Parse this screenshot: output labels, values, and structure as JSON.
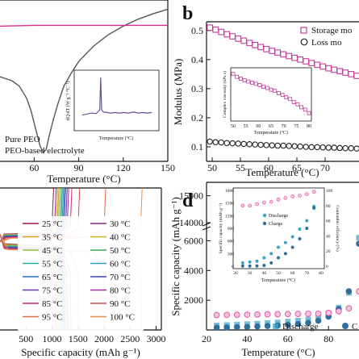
{
  "chart_data": [
    {
      "panel": "a",
      "type": "line",
      "xlabel": "Temperature (°C)",
      "xticks": [
        60,
        90,
        120,
        150
      ],
      "xlim": [
        37,
        150
      ],
      "legend": [
        "Pure PEO",
        "PEO-based electrolyte"
      ],
      "series": [
        {
          "name": "Pure PEO",
          "color": "#555555",
          "x": [
            37,
            45,
            50,
            55,
            58,
            61,
            64,
            66,
            68,
            70,
            73,
            76,
            80,
            85,
            90,
            100,
            110,
            120,
            130,
            140,
            150
          ],
          "y": [
            0.0,
            -0.05,
            -0.12,
            -0.28,
            -0.45,
            -0.68,
            -0.9,
            -0.98,
            -0.95,
            -0.78,
            -0.55,
            -0.35,
            -0.12,
            0.05,
            0.2,
            0.4,
            0.55,
            0.66,
            0.75,
            0.82,
            0.88
          ]
        },
        {
          "name": "PEO-based electrolyte",
          "color": "#d62d8c",
          "x": [
            37,
            60,
            90,
            120,
            150
          ],
          "y": [
            0.66,
            0.67,
            0.67,
            0.67,
            0.67
          ]
        }
      ],
      "ylim": [
        -1.1,
        1.0
      ],
      "inset": {
        "ylabel": "dQ/dT (W g⁻¹ °C⁻¹)",
        "xlabel": "Temperature (°C)",
        "color": "#6a4aa0",
        "x": [
          25,
          30,
          35,
          40,
          44,
          45,
          46,
          48,
          52,
          56,
          60,
          65,
          70,
          75,
          80,
          85,
          90,
          95,
          100
        ],
        "y": [
          0.2,
          0.22,
          0.24,
          0.23,
          0.3,
          0.95,
          0.3,
          0.26,
          0.25,
          0.24,
          0.25,
          0.24,
          0.25,
          0.24,
          0.26,
          0.24,
          0.25,
          0.24,
          0.25
        ]
      }
    },
    {
      "panel": "b",
      "label": "b",
      "type": "scatter",
      "ylabel": "Modulus (MPa)",
      "xlabel": "Temperature (°C)",
      "xticks": [
        50,
        55,
        60,
        65,
        70
      ],
      "yticks": [
        0.1,
        0.2,
        0.3,
        0.4,
        0.5
      ],
      "xlim": [
        49,
        76
      ],
      "ylim": [
        0.05,
        0.53
      ],
      "series": [
        {
          "name": "Storage mo",
          "color": "#c43b9c",
          "marker": "square",
          "x": [
            49.6,
            50.6,
            51.6,
            52.6,
            53.6,
            54.6,
            55.6,
            56.6,
            57.6,
            58.6,
            59.6,
            60.6,
            61.6,
            62.6,
            63.6,
            64.6,
            65.6,
            66.6,
            67.6,
            68.6,
            69.6,
            70.6,
            71.6,
            72.6,
            73.6,
            74.6,
            75.6
          ],
          "y": [
            0.51,
            0.503,
            0.495,
            0.487,
            0.48,
            0.472,
            0.465,
            0.457,
            0.45,
            0.443,
            0.436,
            0.43,
            0.424,
            0.418,
            0.412,
            0.406,
            0.4,
            0.394,
            0.388,
            0.382,
            0.376,
            0.37,
            0.365,
            0.36,
            0.355,
            0.35,
            0.344
          ]
        },
        {
          "name": "Loss mo",
          "color": "#222222",
          "marker": "circle",
          "x": [
            49.6,
            50.6,
            51.6,
            52.6,
            53.6,
            54.6,
            55.6,
            56.6,
            57.6,
            58.6,
            59.6,
            60.6,
            61.6,
            62.6,
            63.6,
            64.6,
            65.6,
            66.6,
            67.6,
            68.6,
            69.6,
            70.6,
            71.6,
            72.6,
            73.6,
            74.6,
            75.6
          ],
          "y": [
            0.118,
            0.116,
            0.115,
            0.113,
            0.112,
            0.111,
            0.11,
            0.109,
            0.108,
            0.107,
            0.106,
            0.105,
            0.104,
            0.104,
            0.103,
            0.102,
            0.101,
            0.1,
            0.099,
            0.099,
            0.098,
            0.097,
            0.097,
            0.096,
            0.095,
            0.095,
            0.094
          ]
        }
      ],
      "inset": {
        "ylabel": "Complex viscosity (kPa s)",
        "xlabel": "Temperature (°C)",
        "xticks": [
          50,
          55,
          60,
          65,
          70,
          75,
          80
        ],
        "xlim": [
          50,
          80
        ],
        "color": "#c43b9c",
        "x": [
          50,
          51.5,
          53,
          54.5,
          56,
          57.5,
          59,
          60.5,
          62,
          63.5,
          65,
          66.5,
          68,
          69.5,
          71,
          72.5,
          74,
          75.5,
          77,
          78.5,
          80
        ],
        "y": [
          0.95,
          0.9,
          0.87,
          0.84,
          0.82,
          0.8,
          0.78,
          0.76,
          0.73,
          0.71,
          0.68,
          0.66,
          0.62,
          0.59,
          0.55,
          0.52,
          0.47,
          0.43,
          0.38,
          0.34,
          0.28
        ]
      }
    },
    {
      "panel": "c",
      "type": "line",
      "xlabel": "Specific capacity (mAh g⁻¹)",
      "xticks": [
        500,
        1000,
        1500,
        2000,
        2500,
        3000
      ],
      "xlim": [
        0,
        3100
      ],
      "legend": [
        {
          "name": "25 °C",
          "color": "#9a1b4a"
        },
        {
          "name": "30 °C",
          "color": "#8a2b7a"
        },
        {
          "name": "35 °C",
          "color": "#d4a92a"
        },
        {
          "name": "40 °C",
          "color": "#c9b52f"
        },
        {
          "name": "45 °C",
          "color": "#8dbb3d"
        },
        {
          "name": "50 °C",
          "color": "#3aa655"
        },
        {
          "name": "55 °C",
          "color": "#2fae9a"
        },
        {
          "name": "60 °C",
          "color": "#2c9fc4"
        },
        {
          "name": "65 °C",
          "color": "#2b6fc1"
        },
        {
          "name": "70 °C",
          "color": "#3b45b3"
        },
        {
          "name": "75 °C",
          "color": "#6a35a8"
        },
        {
          "name": "80 °C",
          "color": "#9a2c96"
        },
        {
          "name": "85 °C",
          "color": "#c72c7a"
        },
        {
          "name": "90 °C",
          "color": "#d64a5a"
        },
        {
          "name": "95 °C",
          "color": "#e06a4a"
        },
        {
          "name": "100 °C",
          "color": "#e8904a"
        }
      ],
      "curve_end_capacities": [
        1000,
        1050,
        1080,
        1100,
        1120,
        1150,
        1170,
        1190,
        1210,
        1230,
        1260,
        1290,
        1350,
        1500,
        2000,
        2700
      ]
    },
    {
      "panel": "d",
      "label": "d",
      "type": "scatter",
      "ylabel": "Specific capacity (mAh g⁻¹)",
      "y2label": "Coulombic efficiency (%)",
      "xlabel": "Temperature (°C)",
      "xticks": [
        20,
        40,
        60,
        80
      ],
      "yticks": [
        2000,
        4000,
        6000,
        14000,
        15000
      ],
      "xlim": [
        20,
        95
      ],
      "series": [
        {
          "name": "Discharge",
          "color": "#3aa3c8",
          "marker": "square",
          "x": [
            25,
            30,
            35,
            40,
            45,
            50,
            55,
            60,
            65,
            70,
            75,
            80,
            85,
            90,
            95
          ],
          "y": [
            300,
            330,
            360,
            390,
            420,
            460,
            500,
            560,
            620,
            700,
            820,
            1100,
            1500,
            2500,
            6200
          ]
        },
        {
          "name": "Charge",
          "color": "#2f6f9a",
          "marker": "circle",
          "x": [
            25,
            30,
            35,
            40,
            45,
            50,
            55,
            60,
            65,
            70,
            75,
            80,
            85,
            90,
            95
          ],
          "y": [
            150,
            170,
            190,
            210,
            240,
            270,
            300,
            340,
            400,
            480,
            620,
            900,
            1400,
            2600,
            5800
          ]
        },
        {
          "name": "Coulombic efficiency",
          "color": "#e05aa8",
          "marker": "circle-open",
          "x": [
            25,
            30,
            35,
            40,
            45,
            50,
            55,
            60,
            65,
            70,
            75,
            80,
            85,
            90,
            95
          ],
          "y": [
            1000,
            1010,
            1020,
            1030,
            1040,
            1050,
            1060,
            1070,
            1080,
            1090,
            1100,
            1150,
            1250,
            1450,
            2600
          ]
        }
      ],
      "legend": [
        "Discharge",
        "C"
      ],
      "inset": {
        "ylabel": "Specific capacity (mAh g⁻¹)",
        "y2label": "Coulombic efficiency (%)",
        "xlabel": "Temperature (°C)",
        "xticks": [
          20,
          30,
          40,
          50,
          60,
          70,
          80
        ],
        "yticks": [
          0,
          300,
          600,
          900,
          1200,
          1500,
          1800
        ],
        "y2ticks": [
          0,
          20,
          40,
          60,
          80,
          100
        ],
        "legend": [
          "Discharge",
          "Charge"
        ],
        "discharge": {
          "x": [
            25,
            30,
            35,
            40,
            45,
            50,
            55,
            60,
            65,
            70,
            75
          ],
          "y": [
            80,
            100,
            120,
            200,
            300,
            450,
            560,
            700,
            880,
            1080,
            1420
          ]
        },
        "charge": {
          "x": [
            25,
            30,
            35,
            40,
            45,
            50,
            55,
            60,
            65,
            70,
            75
          ],
          "y": [
            5,
            5,
            8,
            20,
            80,
            200,
            300,
            450,
            650,
            900,
            1380
          ]
        },
        "efficiency": {
          "x": [
            25,
            30,
            35,
            40,
            45,
            50,
            55,
            60,
            65,
            70,
            75
          ],
          "y": [
            80,
            80,
            82,
            84,
            85,
            88,
            90,
            92,
            93,
            95,
            98
          ]
        }
      }
    }
  ]
}
